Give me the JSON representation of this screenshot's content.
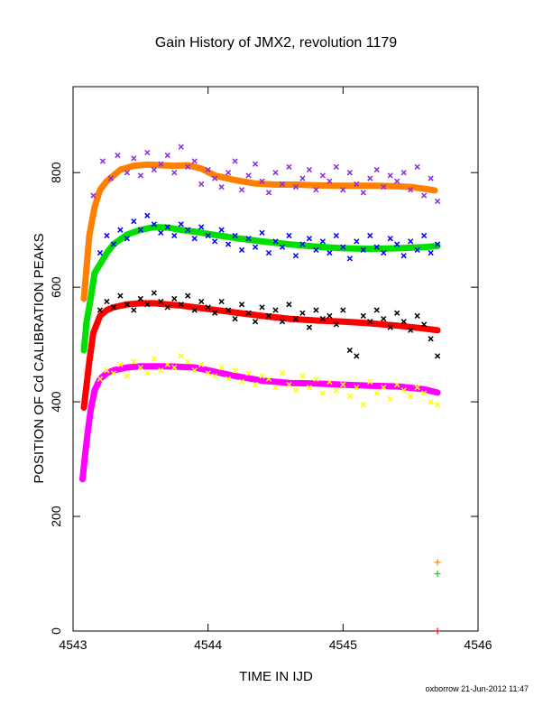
{
  "chart_data": {
    "type": "scatter",
    "title": "Gain History of JMX2, revolution 1179",
    "xlabel": "TIME IN IJD",
    "ylabel": "POSITION OF Cd CALIBRATION PEAKS",
    "xlim": [
      4543,
      4546
    ],
    "ylim": [
      0,
      950
    ],
    "xticks": [
      4543,
      4544,
      4545,
      4546
    ],
    "yticks": [
      0,
      200,
      400,
      600,
      800
    ],
    "grid": false,
    "legend": "none",
    "footer": "oxborrow 21-Jun-2012 11:47",
    "series": [
      {
        "color": "#ff7f00",
        "marker": "line",
        "x": [
          4543.08,
          4543.12,
          4543.16,
          4543.2,
          4543.25,
          4543.3,
          4543.35,
          4543.45,
          4543.55,
          4543.65,
          4543.75,
          4543.85,
          4543.95,
          4544.05,
          4544.2,
          4544.35,
          4544.5,
          4544.65,
          4544.8,
          4544.95,
          4545.1,
          4545.25,
          4545.4,
          4545.5,
          4545.6,
          4545.68
        ],
        "y": [
          580,
          690,
          740,
          770,
          785,
          795,
          805,
          812,
          814,
          813,
          812,
          813,
          807,
          795,
          787,
          781,
          779,
          779,
          778,
          777,
          777,
          777,
          776,
          775,
          772,
          769
        ]
      },
      {
        "color": "#8a2be2",
        "marker": "scatter",
        "x": [
          4543.15,
          4543.22,
          4543.28,
          4543.33,
          4543.4,
          4543.45,
          4543.5,
          4543.55,
          4543.6,
          4543.65,
          4543.7,
          4543.75,
          4543.8,
          4543.85,
          4543.9,
          4543.95,
          4544.0,
          4544.05,
          4544.1,
          4544.15,
          4544.2,
          4544.25,
          4544.3,
          4544.35,
          4544.4,
          4544.45,
          4544.5,
          4544.55,
          4544.6,
          4544.65,
          4544.7,
          4544.75,
          4544.8,
          4544.85,
          4544.9,
          4544.95,
          4545.0,
          4545.05,
          4545.1,
          4545.15,
          4545.2,
          4545.25,
          4545.3,
          4545.35,
          4545.4,
          4545.45,
          4545.5,
          4545.55,
          4545.6,
          4545.65,
          4545.7
        ],
        "y": [
          760,
          820,
          790,
          830,
          800,
          825,
          795,
          835,
          805,
          815,
          830,
          800,
          845,
          810,
          820,
          780,
          805,
          790,
          775,
          800,
          820,
          770,
          795,
          815,
          785,
          765,
          800,
          780,
          810,
          775,
          790,
          805,
          770,
          795,
          785,
          810,
          770,
          800,
          780,
          765,
          790,
          805,
          775,
          795,
          785,
          800,
          770,
          810,
          760,
          790,
          750
        ]
      },
      {
        "color": "#00e000",
        "marker": "line",
        "x": [
          4543.08,
          4543.1,
          4543.13,
          4543.16,
          4543.2,
          4543.25,
          4543.3,
          4543.4,
          4543.5,
          4543.6,
          4543.7,
          4543.8,
          4543.9,
          4544.0,
          4544.2,
          4544.4,
          4544.6,
          4544.8,
          4545.0,
          4545.2,
          4545.4,
          4545.6,
          4545.7
        ],
        "y": [
          490,
          540,
          580,
          625,
          640,
          660,
          675,
          692,
          700,
          705,
          704,
          700,
          697,
          693,
          686,
          680,
          675,
          671,
          668,
          667,
          668,
          670,
          672
        ]
      },
      {
        "color": "#0000ff",
        "marker": "scatter",
        "x": [
          4543.2,
          4543.25,
          4543.3,
          4543.35,
          4543.4,
          4543.45,
          4543.5,
          4543.55,
          4543.6,
          4543.65,
          4543.7,
          4543.75,
          4543.8,
          4543.85,
          4543.9,
          4543.95,
          4544.0,
          4544.05,
          4544.1,
          4544.15,
          4544.2,
          4544.25,
          4544.3,
          4544.35,
          4544.4,
          4544.45,
          4544.5,
          4544.55,
          4544.6,
          4544.65,
          4544.7,
          4544.75,
          4544.8,
          4544.85,
          4544.9,
          4544.95,
          4545.0,
          4545.05,
          4545.1,
          4545.15,
          4545.2,
          4545.25,
          4545.3,
          4545.35,
          4545.4,
          4545.45,
          4545.5,
          4545.55,
          4545.6,
          4545.65,
          4545.7
        ],
        "y": [
          660,
          690,
          675,
          700,
          685,
          715,
          700,
          725,
          710,
          695,
          705,
          690,
          710,
          700,
          685,
          705,
          690,
          680,
          700,
          675,
          690,
          665,
          685,
          670,
          695,
          660,
          680,
          670,
          690,
          655,
          675,
          685,
          665,
          680,
          660,
          690,
          670,
          650,
          680,
          665,
          690,
          670,
          660,
          685,
          675,
          655,
          680,
          665,
          690,
          660,
          675
        ]
      },
      {
        "color": "#ff0000",
        "marker": "line",
        "x": [
          4543.08,
          4543.1,
          4543.12,
          4543.15,
          4543.2,
          4543.25,
          4543.3,
          4543.4,
          4543.5,
          4543.6,
          4543.7,
          4543.8,
          4543.9,
          4544.0,
          4544.2,
          4544.4,
          4544.6,
          4544.8,
          4545.0,
          4545.2,
          4545.4,
          4545.6,
          4545.7
        ],
        "y": [
          390,
          430,
          470,
          520,
          550,
          560,
          565,
          570,
          572,
          572,
          570,
          568,
          565,
          562,
          556,
          550,
          545,
          542,
          540,
          537,
          533,
          528,
          525
        ]
      },
      {
        "color": "#000000",
        "marker": "scatter",
        "x": [
          4543.2,
          4543.25,
          4543.3,
          4543.35,
          4543.4,
          4543.45,
          4543.5,
          4543.55,
          4543.6,
          4543.65,
          4543.7,
          4543.75,
          4543.8,
          4543.85,
          4543.9,
          4543.95,
          4544.0,
          4544.05,
          4544.1,
          4544.15,
          4544.2,
          4544.25,
          4544.3,
          4544.35,
          4544.4,
          4544.45,
          4544.5,
          4544.55,
          4544.6,
          4544.65,
          4544.7,
          4544.75,
          4544.8,
          4544.85,
          4544.9,
          4544.95,
          4545.0,
          4545.05,
          4545.1,
          4545.15,
          4545.2,
          4545.25,
          4545.3,
          4545.35,
          4545.4,
          4545.45,
          4545.5,
          4545.55,
          4545.6,
          4545.65,
          4545.7
        ],
        "y": [
          560,
          575,
          565,
          585,
          570,
          560,
          580,
          570,
          590,
          575,
          565,
          580,
          570,
          585,
          560,
          575,
          565,
          555,
          575,
          560,
          545,
          570,
          555,
          540,
          565,
          550,
          560,
          540,
          570,
          545,
          555,
          530,
          560,
          545,
          550,
          535,
          560,
          490,
          480,
          550,
          540,
          560,
          545,
          530,
          555,
          540,
          525,
          550,
          535,
          510,
          480
        ]
      },
      {
        "color": "#ff00ff",
        "marker": "line",
        "x": [
          4543.07,
          4543.09,
          4543.11,
          4543.13,
          4543.16,
          4543.2,
          4543.25,
          4543.3,
          4543.4,
          4543.5,
          4543.6,
          4543.7,
          4543.8,
          4543.9,
          4544.0,
          4544.2,
          4544.4,
          4544.6,
          4544.8,
          4545.0,
          4545.2,
          4545.4,
          4545.6,
          4545.7
        ],
        "y": [
          265,
          310,
          350,
          385,
          420,
          440,
          450,
          455,
          460,
          462,
          462,
          462,
          461,
          460,
          455,
          445,
          437,
          433,
          432,
          430,
          428,
          427,
          422,
          416
        ]
      },
      {
        "color": "#ffff00",
        "marker": "scatter",
        "x": [
          4543.2,
          4543.25,
          4543.3,
          4543.35,
          4543.4,
          4543.45,
          4543.5,
          4543.55,
          4543.6,
          4543.65,
          4543.7,
          4543.75,
          4543.8,
          4543.85,
          4543.9,
          4543.95,
          4544.0,
          4544.05,
          4544.1,
          4544.15,
          4544.2,
          4544.25,
          4544.3,
          4544.35,
          4544.4,
          4544.45,
          4544.5,
          4544.55,
          4544.6,
          4544.65,
          4544.7,
          4544.75,
          4544.8,
          4544.85,
          4544.9,
          4544.95,
          4545.0,
          4545.05,
          4545.1,
          4545.15,
          4545.2,
          4545.25,
          4545.3,
          4545.35,
          4545.4,
          4545.45,
          4545.5,
          4545.55,
          4545.6,
          4545.65,
          4545.7
        ],
        "y": [
          440,
          455,
          450,
          465,
          445,
          470,
          460,
          450,
          475,
          455,
          465,
          460,
          480,
          470,
          455,
          465,
          450,
          445,
          460,
          440,
          455,
          435,
          450,
          430,
          445,
          440,
          425,
          450,
          430,
          420,
          445,
          425,
          440,
          415,
          435,
          420,
          430,
          410,
          425,
          395,
          435,
          415,
          425,
          405,
          430,
          420,
          410,
          425,
          415,
          400,
          395
        ]
      },
      {
        "color": "#ff7f00",
        "marker": "plus",
        "x": [
          4545.7
        ],
        "y": [
          120
        ]
      },
      {
        "color": "#00e000",
        "marker": "plus",
        "x": [
          4545.7
        ],
        "y": [
          100
        ]
      },
      {
        "color": "#ff0000",
        "marker": "plus",
        "x": [
          4545.7
        ],
        "y": [
          0
        ]
      }
    ]
  }
}
